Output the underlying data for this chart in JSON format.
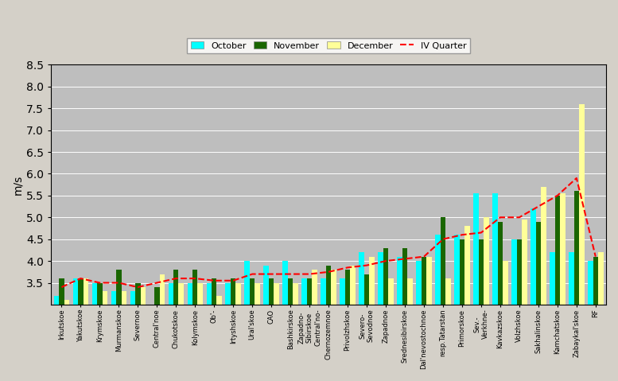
{
  "categories": [
    "Irkutskoe",
    "Yakutskoe",
    "Krymskoe",
    "Murmanskoe",
    "Severnoe",
    "Central'noe",
    "Chukotskoe",
    "Kolymskoe",
    "Ob'-",
    "Irtyshskoe",
    "Ural'skoe",
    "CAO",
    "Bashkirskoe",
    "Zapadno-\nSibirskoe\nCentral'no-",
    "Chernozemnoe",
    "Privolzhskoe",
    "Severo-\nSevodnoe",
    "Zapadnoe",
    "Srednesibirskoe",
    "Dal'nevostochnoe",
    "resp.Tatarstan",
    "Primorskoe",
    "Sev.-\nVerkhne-",
    "Kavkazskoe",
    "Volzhskoe",
    "Sakhalinskoe",
    "Kamchatskoe",
    "Zabaykal'skoe",
    "RF"
  ],
  "october": [
    3.2,
    3.6,
    3.5,
    3.3,
    3.3,
    2.9,
    3.5,
    3.5,
    3.5,
    3.5,
    4.0,
    3.9,
    4.0,
    3.6,
    3.6,
    3.6,
    4.2,
    4.2,
    4.1,
    4.0,
    4.6,
    4.6,
    5.55,
    5.55,
    4.5,
    5.2,
    4.2,
    4.2,
    4.0
  ],
  "november": [
    3.6,
    3.6,
    3.5,
    3.8,
    3.5,
    3.4,
    3.8,
    3.8,
    3.6,
    3.6,
    3.6,
    3.6,
    3.6,
    3.6,
    3.9,
    3.8,
    3.7,
    4.3,
    4.3,
    4.1,
    5.0,
    4.5,
    4.5,
    4.9,
    4.5,
    4.9,
    5.5,
    5.6,
    4.1
  ],
  "december": [
    3.1,
    3.6,
    3.3,
    3.3,
    3.4,
    3.7,
    3.5,
    3.5,
    3.2,
    3.5,
    3.5,
    3.5,
    3.5,
    3.8,
    3.8,
    3.9,
    4.1,
    3.6,
    3.6,
    4.1,
    3.6,
    4.8,
    5.0,
    4.0,
    4.95,
    5.7,
    5.55,
    7.6,
    4.2
  ],
  "iv_quarter": [
    3.4,
    3.6,
    3.5,
    3.5,
    3.4,
    3.5,
    3.6,
    3.6,
    3.55,
    3.55,
    3.7,
    3.7,
    3.7,
    3.7,
    3.75,
    3.85,
    3.9,
    4.0,
    4.05,
    4.1,
    4.5,
    4.6,
    4.65,
    5.0,
    5.0,
    5.25,
    5.5,
    5.9,
    4.1
  ],
  "october_color": "#00FFFF",
  "november_color": "#1A6600",
  "december_color": "#FFFF99",
  "iv_quarter_color": "#FF0000",
  "background_color": "#BEBEBE",
  "fig_background": "#D4D0C8",
  "ylabel": "m/s",
  "ylim": [
    3.0,
    8.5
  ],
  "yticks": [
    3.5,
    4.0,
    4.5,
    5.0,
    5.5,
    6.0,
    6.5,
    7.0,
    7.5,
    8.0,
    8.5
  ],
  "bar_bottom": 3.0,
  "figwidth": 7.77,
  "figheight": 4.79,
  "dpi": 100
}
